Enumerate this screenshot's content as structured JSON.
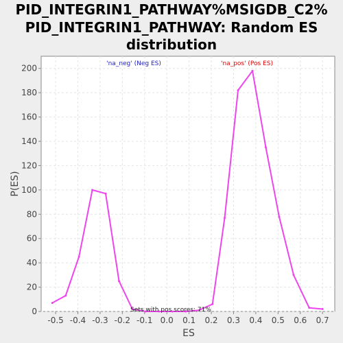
{
  "chart_data": {
    "type": "line",
    "title_lines": [
      "PID_INTEGRIN1_PATHWAY%MSIGDB_C2%",
      "PID_INTEGRIN1_PATHWAY: Random ES",
      "distribution"
    ],
    "xlabel": "ES",
    "ylabel": "P(ES)",
    "xlim": [
      -0.565,
      0.755
    ],
    "ylim": [
      0,
      210
    ],
    "x_ticks": [
      -0.5,
      -0.4,
      -0.3,
      -0.2,
      -0.1,
      0.0,
      0.1,
      0.2,
      0.3,
      0.4,
      0.5,
      0.6,
      0.7
    ],
    "x_tick_labels": [
      "-0.5",
      "-0.4",
      "-0.3",
      "-0.2",
      "-0.1",
      "0.0",
      "0.1",
      "0.2",
      "0.3",
      "0.4",
      "0.5",
      "0.6",
      "0.7"
    ],
    "y_ticks": [
      0,
      20,
      40,
      60,
      80,
      100,
      120,
      140,
      160,
      180,
      200
    ],
    "y_tick_labels": [
      "0",
      "20",
      "40",
      "60",
      "80",
      "100",
      "120",
      "140",
      "160",
      "180",
      "200"
    ],
    "grid": true,
    "series": [
      {
        "color": "#ee44ee",
        "x": [
          -0.515,
          -0.455,
          -0.395,
          -0.335,
          -0.275,
          -0.215,
          -0.155,
          -0.095,
          -0.035,
          0.025,
          0.085,
          0.145,
          0.205,
          0.26,
          0.32,
          0.385,
          0.445,
          0.505,
          0.57,
          0.64,
          0.7
        ],
        "y": [
          7,
          13,
          45,
          100,
          97,
          25,
          2,
          0,
          0,
          0,
          0,
          1,
          6,
          77,
          182,
          198,
          135,
          78,
          30,
          3,
          2
        ]
      }
    ],
    "annotations": [
      {
        "text": "'na_neg' (Neg ES)",
        "color": "#2222bb"
      },
      {
        "text": "'na_pos' (Pos ES)",
        "color": "#dd0000"
      },
      {
        "text": "Sets with pos scores: 71%",
        "color": "#222222"
      }
    ]
  }
}
